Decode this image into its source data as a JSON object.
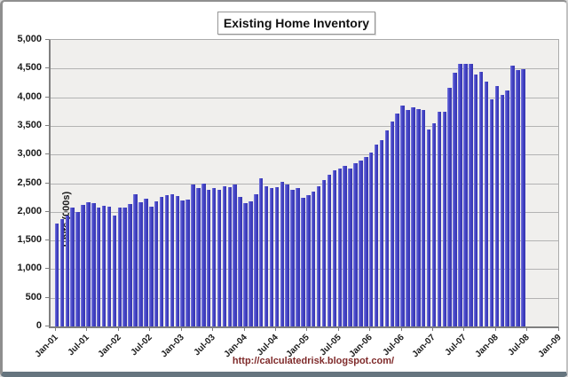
{
  "window": {
    "kind": "chart-image"
  },
  "chart": {
    "title": "Existing Home Inventory",
    "footer_url": "http://calculatedrisk.blogspot.com/"
  },
  "colors": {
    "bar_fill": "#4242c6",
    "bar_highlight": "#8080e0",
    "bar_shadow": "#3434ae",
    "plot_background": "#f0efed",
    "gridline": "#b3b3b3",
    "axis_line": "#7f7f7f",
    "label_text": "#1a1a1a",
    "url_text": "#7f2a2a",
    "frame_bottom": "#66757f",
    "page_background": "#ffffff"
  },
  "chart_data": {
    "type": "bar",
    "title": "Existing Home Inventory",
    "xlabel": "",
    "ylabel": "Units (000s)",
    "ylim": [
      0,
      5000
    ],
    "ytick_interval": 500,
    "grid": "horizontal",
    "legend_position": "none",
    "ytick_labels": [
      "0",
      "500",
      "1,000",
      "1,500",
      "2,000",
      "2,500",
      "3,000",
      "3,500",
      "4,000",
      "4,500",
      "5,000"
    ],
    "xtick_labels": [
      "Jan-01",
      "Jul-01",
      "Jan-02",
      "Jul-02",
      "Jan-03",
      "Jul-03",
      "Jan-04",
      "Jul-04",
      "Jan-05",
      "Jul-05",
      "Jan-06",
      "Jul-06",
      "Jan-07",
      "Jul-07",
      "Jan-08",
      "Jul-08",
      "Jan-09"
    ],
    "xtick_every_n_months": 6,
    "x_axis_extends_to": "Jan-09",
    "categories": [
      "Jan-01",
      "Feb-01",
      "Mar-01",
      "Apr-01",
      "May-01",
      "Jun-01",
      "Jul-01",
      "Aug-01",
      "Sep-01",
      "Oct-01",
      "Nov-01",
      "Dec-01",
      "Jan-02",
      "Feb-02",
      "Mar-02",
      "Apr-02",
      "May-02",
      "Jun-02",
      "Jul-02",
      "Aug-02",
      "Sep-02",
      "Oct-02",
      "Nov-02",
      "Dec-02",
      "Jan-03",
      "Feb-03",
      "Mar-03",
      "Apr-03",
      "May-03",
      "Jun-03",
      "Jul-03",
      "Aug-03",
      "Sep-03",
      "Oct-03",
      "Nov-03",
      "Dec-03",
      "Jan-04",
      "Feb-04",
      "Mar-04",
      "Apr-04",
      "May-04",
      "Jun-04",
      "Jul-04",
      "Aug-04",
      "Sep-04",
      "Oct-04",
      "Nov-04",
      "Dec-04",
      "Jan-05",
      "Feb-05",
      "Mar-05",
      "Apr-05",
      "May-05",
      "Jun-05",
      "Jul-05",
      "Aug-05",
      "Sep-05",
      "Oct-05",
      "Nov-05",
      "Dec-05",
      "Jan-06",
      "Feb-06",
      "Mar-06",
      "Apr-06",
      "May-06",
      "Jun-06",
      "Jul-06",
      "Aug-06",
      "Sep-06",
      "Oct-06",
      "Nov-06",
      "Dec-06",
      "Jan-07",
      "Feb-07",
      "Mar-07",
      "Apr-07",
      "May-07",
      "Jun-07",
      "Jul-07",
      "Aug-07",
      "Sep-07",
      "Oct-07",
      "Nov-07",
      "Dec-07",
      "Jan-08",
      "Feb-08",
      "Mar-08",
      "Apr-08",
      "May-08",
      "Jun-08"
    ],
    "values": [
      1800,
      1870,
      1930,
      2080,
      2000,
      2120,
      2160,
      2150,
      2070,
      2100,
      2090,
      1940,
      2080,
      2080,
      2130,
      2310,
      2160,
      2230,
      2090,
      2190,
      2260,
      2290,
      2300,
      2280,
      2200,
      2220,
      2480,
      2410,
      2500,
      2390,
      2410,
      2390,
      2450,
      2430,
      2470,
      2260,
      2150,
      2180,
      2310,
      2590,
      2450,
      2420,
      2430,
      2520,
      2480,
      2390,
      2420,
      2250,
      2290,
      2350,
      2440,
      2560,
      2640,
      2720,
      2750,
      2800,
      2760,
      2850,
      2900,
      2950,
      3040,
      3170,
      3250,
      3420,
      3580,
      3720,
      3850,
      3780,
      3820,
      3790,
      3770,
      3440,
      3540,
      3750,
      3750,
      4160,
      4430,
      4580,
      4590,
      4580,
      4400,
      4450,
      4270,
      3970,
      4190,
      4040,
      4120,
      4550,
      4480,
      4490
    ]
  }
}
